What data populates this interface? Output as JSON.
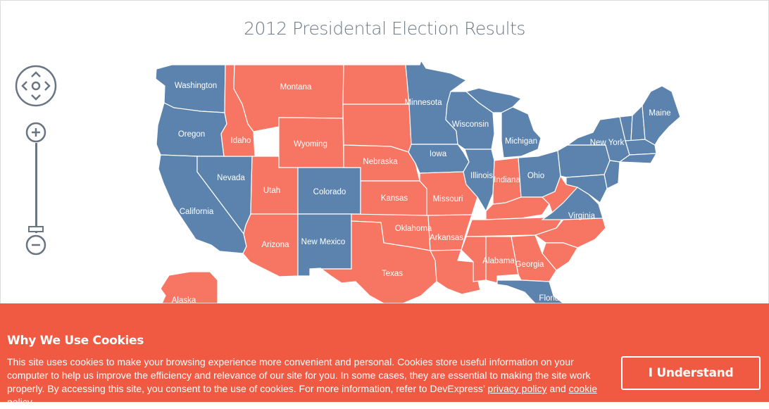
{
  "title": "2012 Presidental Election Results",
  "colors": {
    "democrat": "#5b83ae",
    "republican": "#f77563",
    "banner": "#f05a42"
  },
  "map_controls": {
    "pan": "pan-control-icon",
    "zoom_in": "zoom-in-icon",
    "zoom_out": "zoom-out-icon"
  },
  "states": {
    "washington": "Washington",
    "oregon": "Oregon",
    "california": "California",
    "nevada": "Nevada",
    "idaho": "Idaho",
    "montana": "Montana",
    "wyoming": "Wyoming",
    "utah": "Utah",
    "arizona": "Arizona",
    "colorado": "Colorado",
    "new_mexico": "New Mexico",
    "nebraska": "Nebraska",
    "kansas": "Kansas",
    "oklahoma": "Oklahoma",
    "texas": "Texas",
    "minnesota": "Minnesota",
    "iowa": "Iowa",
    "missouri": "Missouri",
    "arkansas": "Arkansas",
    "wisconsin": "Wisconsin",
    "illinois": "Illinois",
    "michigan": "Michigan",
    "indiana": "Indiana",
    "ohio": "Ohio",
    "alabama": "Alabama",
    "georgia": "Georgia",
    "florida": "Florida",
    "virginia": "Virginia",
    "new_york": "New York",
    "maine": "Maine",
    "alaska": "Alaska"
  },
  "cookie_banner": {
    "heading": "Why We Use Cookies",
    "text": "This site uses cookies to make your browsing experience more convenient and personal. Cookies store useful information on your computer to help us improve the efficiency and relevance of our site for you. In some cases, they are essential to making the site work properly. By accessing this site, you consent to the use of cookies. For more information, refer to DevExpress’ ",
    "privacy_link": "privacy policy",
    "and": " and ",
    "cookie_link": "cookie policy",
    "period": ".",
    "button": "I Understand"
  }
}
